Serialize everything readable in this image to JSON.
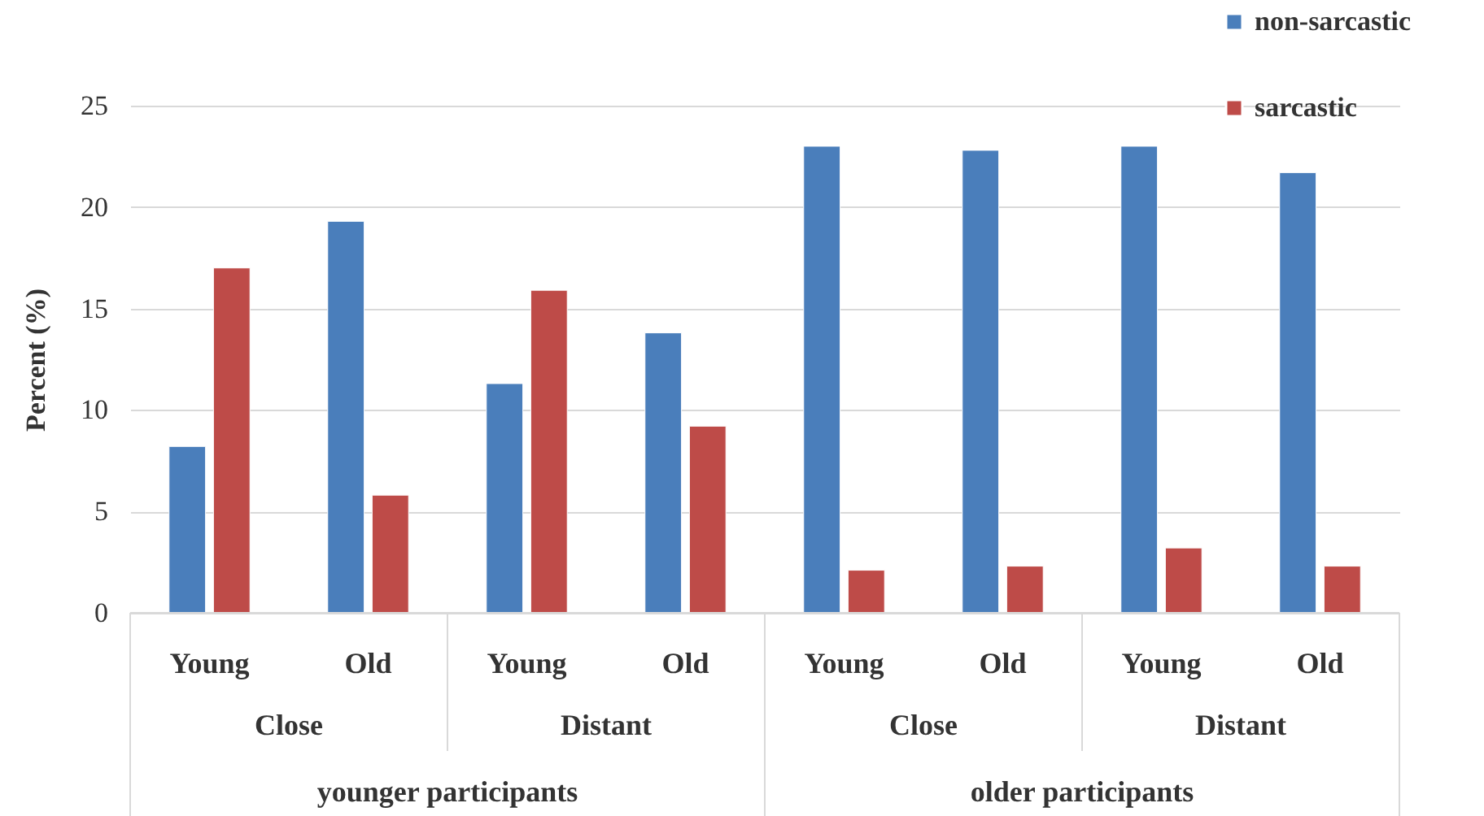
{
  "chart_data": {
    "type": "bar",
    "ylabel": "Percent (%)",
    "categories": [
      "Young",
      "Old",
      "Young",
      "Old",
      "Young",
      "Old",
      "Young",
      "Old"
    ],
    "series": [
      {
        "name": "non-sarcastic",
        "color": "#4a7ebb",
        "values": [
          8.2,
          19.3,
          11.3,
          13.8,
          23.0,
          22.8,
          23.0,
          21.7
        ]
      },
      {
        "name": "sarcastic",
        "color": "#be4b48",
        "values": [
          17.0,
          5.8,
          15.9,
          9.2,
          2.1,
          2.3,
          3.2,
          2.3
        ]
      }
    ],
    "annotations": [
      "Close",
      "Distant",
      "Close",
      "Distant",
      "younger participants",
      "older participants"
    ],
    "ylim": [
      0,
      25
    ],
    "yticks": [
      0,
      5,
      10,
      15,
      20,
      25
    ],
    "grid": "y",
    "legend": "top right"
  }
}
